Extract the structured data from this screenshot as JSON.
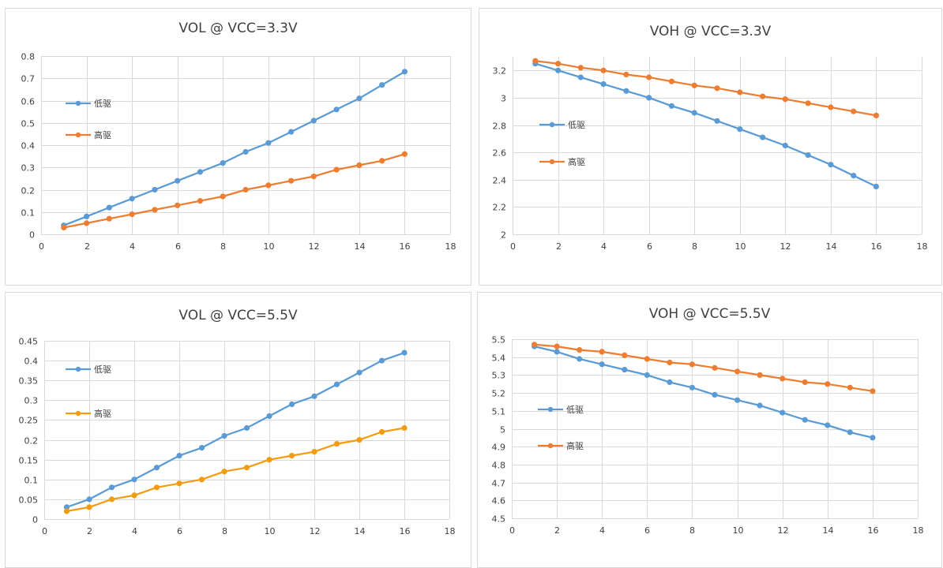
{
  "colors": {
    "low": "#5b9bd5",
    "high": "#ed7d31",
    "high_alt": "#f39c12",
    "grid": "#d9d9d9",
    "text": "#404040"
  },
  "chart_data": [
    {
      "type": "line",
      "title": "VOL @ VCC=3.3V",
      "xlabel": "",
      "ylabel": "",
      "xlim": [
        0,
        18
      ],
      "ylim": [
        0,
        0.8
      ],
      "xticks": [
        "0",
        "2",
        "4",
        "6",
        "8",
        "10",
        "12",
        "14",
        "16",
        "18"
      ],
      "yticks": [
        "0",
        "0.1",
        "0.2",
        "0.3",
        "0.4",
        "0.5",
        "0.6",
        "0.7",
        "0.8"
      ],
      "grid": true,
      "legend_position": "left",
      "x": [
        1,
        2,
        3,
        4,
        5,
        6,
        7,
        8,
        9,
        10,
        11,
        12,
        13,
        14,
        15,
        16
      ],
      "series": [
        {
          "name": "低驱",
          "color": "#5b9bd5",
          "values": [
            0.04,
            0.08,
            0.12,
            0.16,
            0.2,
            0.24,
            0.28,
            0.32,
            0.37,
            0.41,
            0.46,
            0.51,
            0.56,
            0.61,
            0.67,
            0.73
          ]
        },
        {
          "name": "高驱",
          "color": "#ed7d31",
          "values": [
            0.03,
            0.05,
            0.07,
            0.09,
            0.11,
            0.13,
            0.15,
            0.17,
            0.2,
            0.22,
            0.24,
            0.26,
            0.29,
            0.31,
            0.33,
            0.36
          ]
        }
      ]
    },
    {
      "type": "line",
      "title": "VOH @ VCC=3.3V",
      "xlabel": "",
      "ylabel": "",
      "xlim": [
        0,
        18
      ],
      "ylim": [
        2,
        3.3
      ],
      "xticks": [
        "0",
        "2",
        "4",
        "6",
        "8",
        "10",
        "12",
        "14",
        "16",
        "18"
      ],
      "yticks": [
        "2",
        "2.2",
        "2.4",
        "2.6",
        "2.8",
        "3",
        "3.2"
      ],
      "grid": true,
      "legend_position": "left",
      "x": [
        1,
        2,
        3,
        4,
        5,
        6,
        7,
        8,
        9,
        10,
        11,
        12,
        13,
        14,
        15,
        16
      ],
      "series": [
        {
          "name": "低驱",
          "color": "#5b9bd5",
          "values": [
            3.25,
            3.2,
            3.15,
            3.1,
            3.05,
            3.0,
            2.94,
            2.89,
            2.83,
            2.77,
            2.71,
            2.65,
            2.58,
            2.51,
            2.43,
            2.35
          ]
        },
        {
          "name": "高驱",
          "color": "#ed7d31",
          "values": [
            3.27,
            3.25,
            3.22,
            3.2,
            3.17,
            3.15,
            3.12,
            3.09,
            3.07,
            3.04,
            3.01,
            2.99,
            2.96,
            2.93,
            2.9,
            2.87
          ]
        }
      ]
    },
    {
      "type": "line",
      "title": "VOL @ VCC=5.5V",
      "xlabel": "",
      "ylabel": "",
      "xlim": [
        0,
        18
      ],
      "ylim": [
        0,
        0.45
      ],
      "xticks": [
        "0",
        "2",
        "4",
        "6",
        "8",
        "10",
        "12",
        "14",
        "16",
        "18"
      ],
      "yticks": [
        "0",
        "0.05",
        "0.1",
        "0.15",
        "0.2",
        "0.25",
        "0.3",
        "0.35",
        "0.4",
        "0.45"
      ],
      "grid": true,
      "legend_position": "left",
      "x": [
        1,
        2,
        3,
        4,
        5,
        6,
        7,
        8,
        9,
        10,
        11,
        12,
        13,
        14,
        15,
        16
      ],
      "series": [
        {
          "name": "低驱",
          "color": "#5b9bd5",
          "values": [
            0.03,
            0.05,
            0.08,
            0.1,
            0.13,
            0.16,
            0.18,
            0.21,
            0.23,
            0.26,
            0.29,
            0.31,
            0.34,
            0.37,
            0.4,
            0.42
          ]
        },
        {
          "name": "高驱",
          "color": "#f39c12",
          "values": [
            0.02,
            0.03,
            0.05,
            0.06,
            0.08,
            0.09,
            0.1,
            0.12,
            0.13,
            0.15,
            0.16,
            0.17,
            0.19,
            0.2,
            0.22,
            0.23
          ]
        }
      ]
    },
    {
      "type": "line",
      "title": "VOH @ VCC=5.5V",
      "xlabel": "",
      "ylabel": "",
      "xlim": [
        0,
        18
      ],
      "ylim": [
        4.5,
        5.5
      ],
      "xticks": [
        "0",
        "2",
        "4",
        "6",
        "8",
        "10",
        "12",
        "14",
        "16",
        "18"
      ],
      "yticks": [
        "4.5",
        "4.6",
        "4.7",
        "4.8",
        "4.9",
        "5",
        "5.1",
        "5.2",
        "5.3",
        "5.4",
        "5.5"
      ],
      "grid": true,
      "legend_position": "left",
      "x": [
        1,
        2,
        3,
        4,
        5,
        6,
        7,
        8,
        9,
        10,
        11,
        12,
        13,
        14,
        15,
        16
      ],
      "series": [
        {
          "name": "低驱",
          "color": "#5b9bd5",
          "values": [
            5.46,
            5.43,
            5.39,
            5.36,
            5.33,
            5.3,
            5.26,
            5.23,
            5.19,
            5.16,
            5.13,
            5.09,
            5.05,
            5.02,
            4.98,
            4.95
          ]
        },
        {
          "name": "高驱",
          "color": "#ed7d31",
          "values": [
            5.47,
            5.46,
            5.44,
            5.43,
            5.41,
            5.39,
            5.37,
            5.36,
            5.34,
            5.32,
            5.3,
            5.28,
            5.26,
            5.25,
            5.23,
            5.21
          ]
        }
      ]
    }
  ]
}
